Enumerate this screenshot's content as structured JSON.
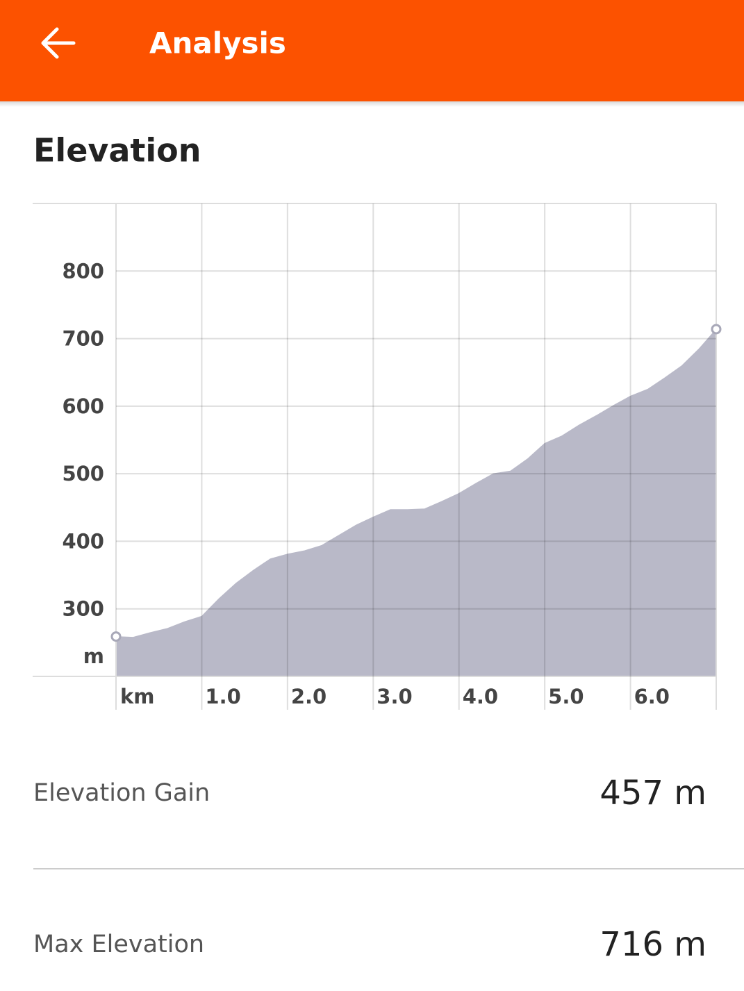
{
  "header": {
    "title": "Analysis"
  },
  "section_title": "Elevation",
  "chart_data": {
    "type": "area",
    "x_label": "km",
    "y_label": "m",
    "x": [
      0,
      0.2,
      0.4,
      0.6,
      0.8,
      1.0,
      1.2,
      1.4,
      1.6,
      1.8,
      2.0,
      2.2,
      2.4,
      2.6,
      2.8,
      3.0,
      3.2,
      3.4,
      3.6,
      3.8,
      4.0,
      4.2,
      4.4,
      4.6,
      4.8,
      5.0,
      5.2,
      5.4,
      5.6,
      5.8,
      6.0,
      6.2,
      6.4,
      6.6,
      6.8,
      7.0
    ],
    "values": [
      259,
      258,
      265,
      271,
      281,
      289,
      315,
      338,
      357,
      374,
      381,
      386,
      394,
      409,
      424,
      436,
      447,
      447,
      448,
      459,
      471,
      486,
      500,
      504,
      522,
      545,
      556,
      572,
      586,
      601,
      615,
      625,
      642,
      660,
      685,
      714
    ],
    "color": "#b9b9c8",
    "xlim": [
      0,
      7
    ],
    "ylim": [
      200,
      900
    ],
    "xticks": [
      {
        "value": 1,
        "label": "1.0"
      },
      {
        "value": 2,
        "label": "2.0"
      },
      {
        "value": 3,
        "label": "3.0"
      },
      {
        "value": 4,
        "label": "4.0"
      },
      {
        "value": 5,
        "label": "5.0"
      },
      {
        "value": 6,
        "label": "6.0"
      }
    ],
    "yticks": [
      300,
      400,
      500,
      600,
      700,
      800
    ],
    "grid": true
  },
  "stats": [
    {
      "label": "Elevation Gain",
      "value": "457 m"
    },
    {
      "label": "Max Elevation",
      "value": "716 m"
    }
  ]
}
